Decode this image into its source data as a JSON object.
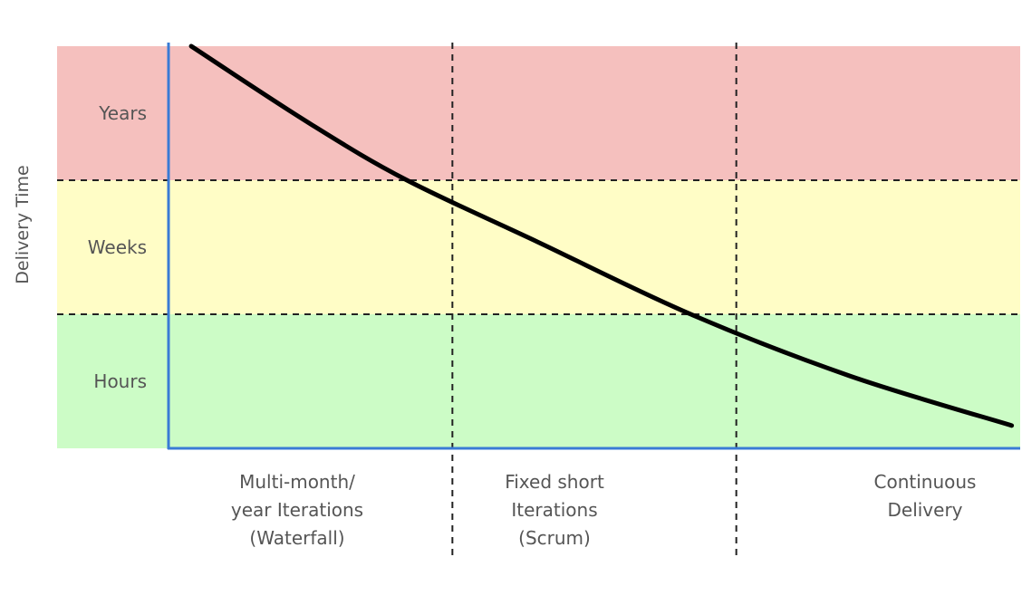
{
  "chart_data": {
    "type": "line",
    "title": "",
    "xlabel": "",
    "ylabel": "Delivery Time",
    "y_categories": [
      "Hours",
      "Weeks",
      "Years"
    ],
    "y_band_colors": [
      "#ccfcc6",
      "#fffdc6",
      "#f5c0be"
    ],
    "x_categories": [
      {
        "lines": [
          "Multi-month/",
          "year Iterations",
          "(Waterfall)"
        ]
      },
      {
        "lines": [
          "Fixed short",
          "Iterations",
          "(Scrum)"
        ]
      },
      {
        "lines": [
          "Continuous",
          "Delivery"
        ]
      }
    ],
    "xlim": [
      0,
      3
    ],
    "ylim": [
      0,
      3
    ],
    "series": [
      {
        "color": "#000000",
        "points": [
          {
            "x": 0.08,
            "y": 3.0
          },
          {
            "x": 0.5,
            "y": 2.42
          },
          {
            "x": 0.84,
            "y": 2.0
          },
          {
            "x": 1.3,
            "y": 1.54
          },
          {
            "x": 1.84,
            "y": 1.0
          },
          {
            "x": 2.4,
            "y": 0.54
          },
          {
            "x": 2.97,
            "y": 0.17
          }
        ]
      }
    ],
    "axis_color": "#3a7bd5",
    "grid": "dashed"
  }
}
